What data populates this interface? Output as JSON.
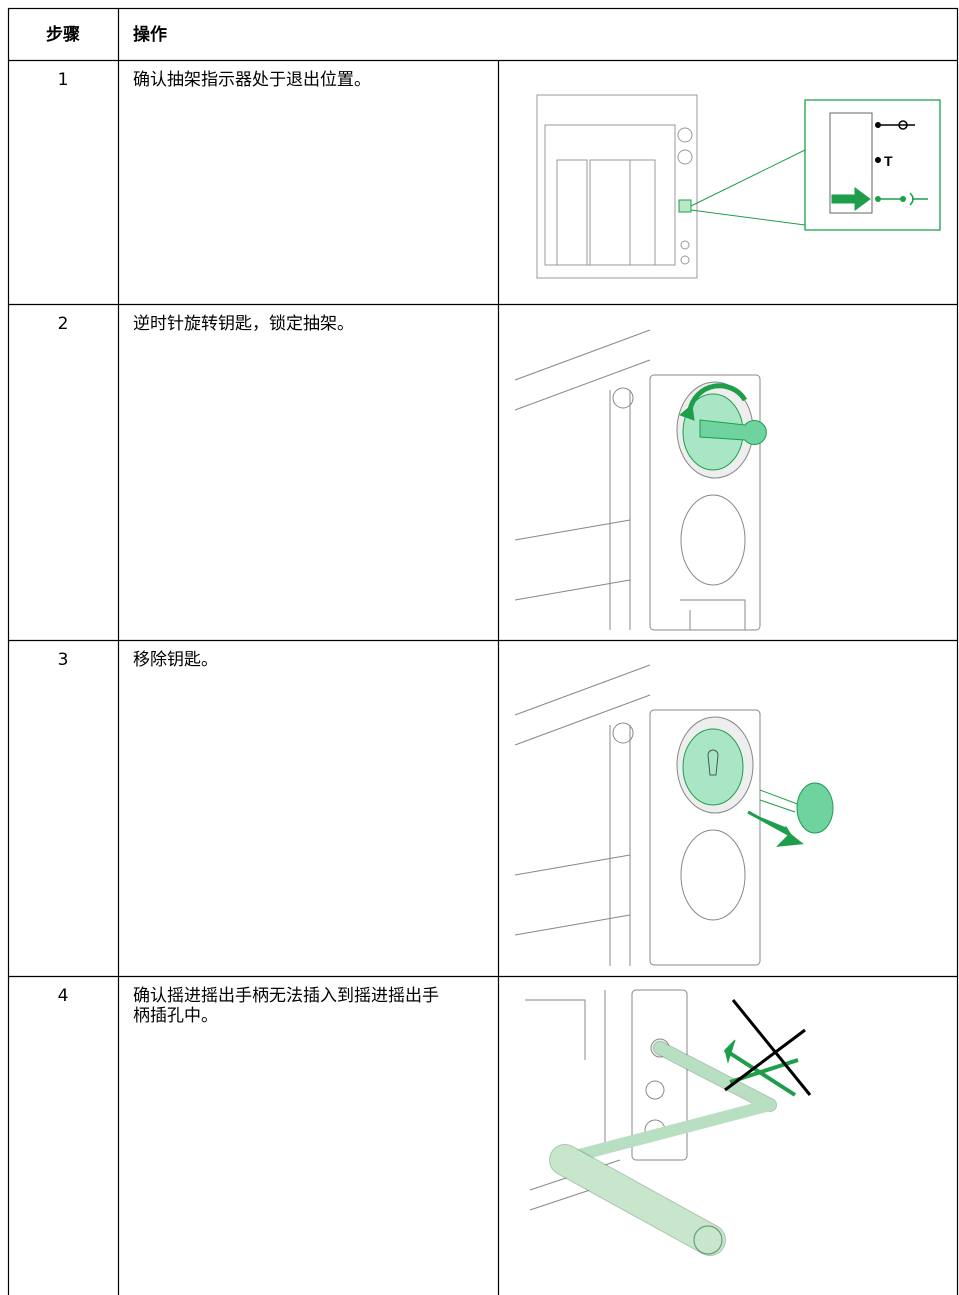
{
  "table": {
    "header": [
      "步骤",
      "操作"
    ],
    "rows": [
      {
        "step": 1,
        "action": "确认抽架指示器处于退出位置。",
        "figure_text": "T"
      },
      {
        "step": 2,
        "action": "逆时针旋转钥匙，锁定抽架。"
      },
      {
        "step": 3,
        "action": "移除钥匙。"
      },
      {
        "step": 4,
        "action": "确认摇进摇出手柄无法插入到摇进摇出手柄插孔中。"
      }
    ]
  }
}
